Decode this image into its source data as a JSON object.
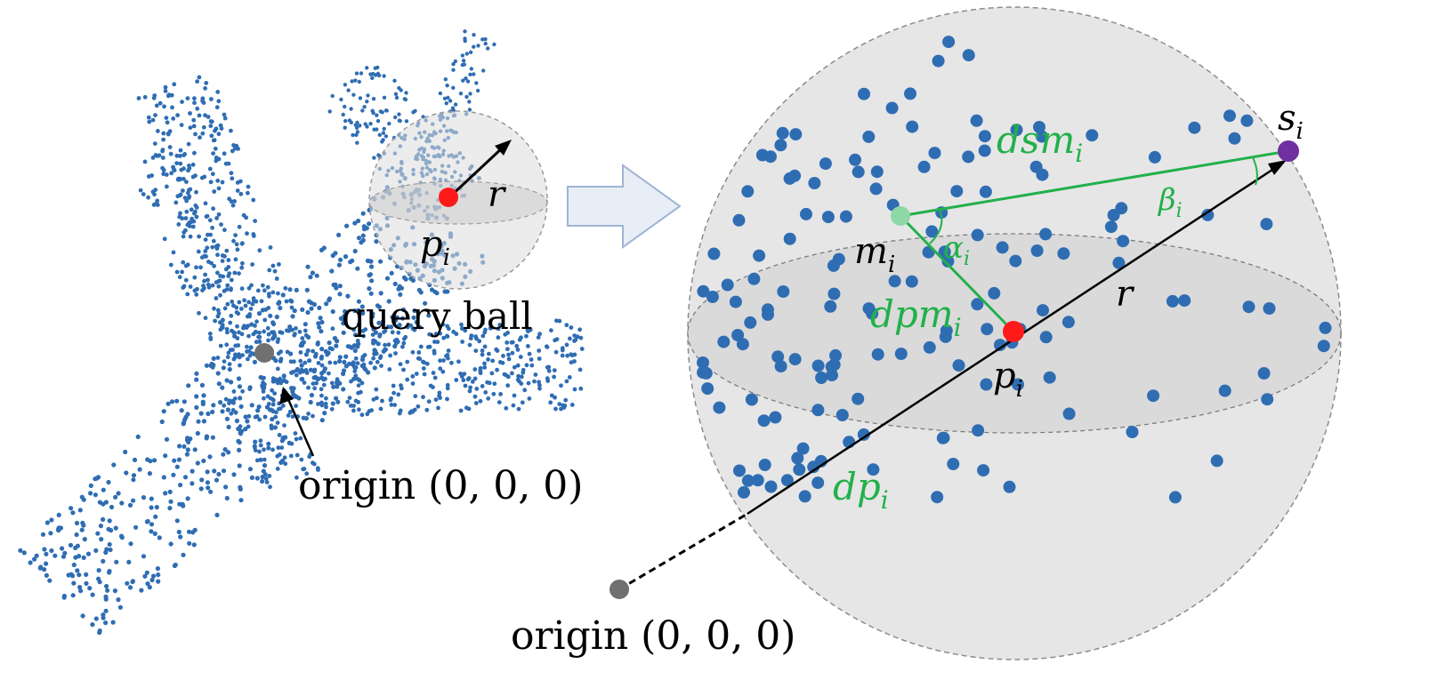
{
  "left_panel": {
    "query_ball_label": "query ball",
    "origin_label": "origin (0, 0, 0)",
    "r_label": "r",
    "p_label": {
      "base": "p",
      "sub": "i"
    }
  },
  "right_panel": {
    "origin_label": "origin (0, 0, 0)",
    "r_label": "r",
    "p_label": {
      "base": "p",
      "sub": "i"
    },
    "s_label": {
      "base": "s",
      "sub": "i"
    },
    "m_label": {
      "base": "m",
      "sub": "i"
    },
    "dsm_label": {
      "base": "dsm",
      "sub": "i"
    },
    "dpm_label": {
      "base": "dpm",
      "sub": "i"
    },
    "dp_label": {
      "base": "dp",
      "sub": "i"
    },
    "alpha_label": {
      "base": "α",
      "sub": "i"
    },
    "beta_label": {
      "base": "β",
      "sub": "i"
    }
  },
  "colors": {
    "point_blue": "#2f6db3",
    "center_red": "#ff1a1a",
    "origin_gray": "#707070",
    "s_purple": "#7030a0",
    "m_green": "#8ed8a6",
    "measure_green": "#22b04b",
    "ball_fill": "#e6e6e6",
    "arrow_fill": "#e8eef6",
    "arrow_stroke": "#9fb4d4"
  }
}
